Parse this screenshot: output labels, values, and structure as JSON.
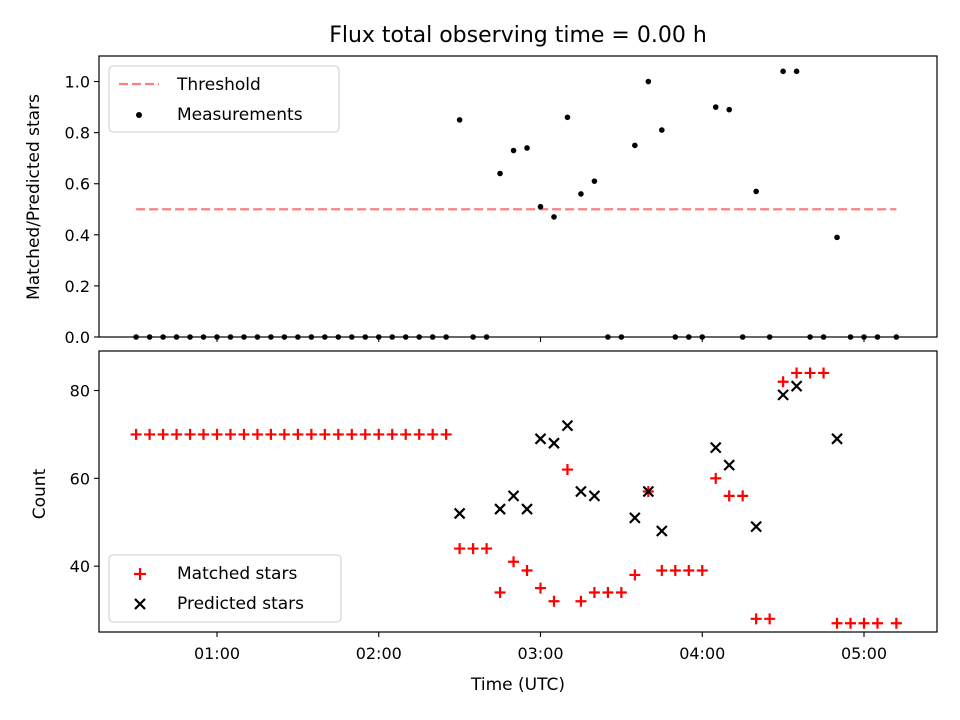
{
  "title": "Flux total observing time = 0.00 h",
  "colors": {
    "threshold": "#ff7f7f",
    "measurements": "#000000",
    "matched": "#ff0000",
    "predicted": "#000000"
  },
  "chart_data": [
    {
      "type": "scatter",
      "title": "Flux total observing time = 0.00 h",
      "xlabel": "",
      "ylabel": "Matched/Predicted stars",
      "ylim": [
        0,
        1.1
      ],
      "yticks": [
        "0.0",
        "0.2",
        "0.4",
        "0.6",
        "0.8",
        "1.0"
      ],
      "legend_position": "top-left",
      "series": [
        {
          "name": "Threshold",
          "style": "dashed-line",
          "color": "#ff7f7f",
          "x": [
            "00:30",
            "05:12"
          ],
          "y": [
            0.5,
            0.5
          ]
        },
        {
          "name": "Measurements",
          "style": "dot",
          "color": "#000000",
          "x": [
            "00:30",
            "00:35",
            "00:40",
            "00:45",
            "00:50",
            "00:55",
            "01:00",
            "01:05",
            "01:10",
            "01:15",
            "01:20",
            "01:25",
            "01:30",
            "01:35",
            "01:40",
            "01:45",
            "01:50",
            "01:55",
            "02:00",
            "02:05",
            "02:10",
            "02:15",
            "02:20",
            "02:25",
            "02:30",
            "02:35",
            "02:40",
            "02:45",
            "02:50",
            "02:55",
            "03:00",
            "03:05",
            "03:10",
            "03:15",
            "03:20",
            "03:25",
            "03:30",
            "03:35",
            "03:40",
            "03:45",
            "03:50",
            "03:55",
            "04:00",
            "04:05",
            "04:10",
            "04:15",
            "04:20",
            "04:25",
            "04:30",
            "04:35",
            "04:40",
            "04:45",
            "04:50",
            "04:55",
            "05:00",
            "05:05",
            "05:12"
          ],
          "y": [
            0,
            0,
            0,
            0,
            0,
            0,
            0,
            0,
            0,
            0,
            0,
            0,
            0,
            0,
            0,
            0,
            0,
            0,
            0,
            0,
            0,
            0,
            0,
            0,
            0.85,
            0,
            0,
            0.64,
            0.73,
            0.74,
            0.51,
            0.47,
            0.86,
            0.56,
            0.61,
            0,
            0,
            0.75,
            1.0,
            0.81,
            0,
            0,
            0,
            0.9,
            0.89,
            0,
            0.57,
            0,
            1.04,
            1.04,
            0,
            0,
            0.39,
            0,
            0,
            0,
            0
          ]
        }
      ]
    },
    {
      "type": "scatter",
      "xlabel": "Time (UTC)",
      "ylabel": "Count",
      "ylim": [
        25,
        89
      ],
      "yticks": [
        "40",
        "60",
        "80"
      ],
      "xticks": [
        "01:00",
        "02:00",
        "03:00",
        "04:00",
        "05:00"
      ],
      "legend_position": "bottom-left",
      "series": [
        {
          "name": "Matched stars",
          "marker": "+",
          "color": "#ff0000",
          "x": [
            "00:30",
            "00:35",
            "00:40",
            "00:45",
            "00:50",
            "00:55",
            "01:00",
            "01:05",
            "01:10",
            "01:15",
            "01:20",
            "01:25",
            "01:30",
            "01:35",
            "01:40",
            "01:45",
            "01:50",
            "01:55",
            "02:00",
            "02:05",
            "02:10",
            "02:15",
            "02:20",
            "02:25",
            "02:30",
            "02:35",
            "02:40",
            "02:45",
            "02:50",
            "02:55",
            "03:00",
            "03:05",
            "03:10",
            "03:15",
            "03:20",
            "03:25",
            "03:30",
            "03:35",
            "03:40",
            "03:45",
            "03:50",
            "03:55",
            "04:00",
            "04:05",
            "04:10",
            "04:15",
            "04:20",
            "04:25",
            "04:30",
            "04:35",
            "04:40",
            "04:45",
            "04:50",
            "04:55",
            "05:00",
            "05:05",
            "05:12"
          ],
          "y": [
            70,
            70,
            70,
            70,
            70,
            70,
            70,
            70,
            70,
            70,
            70,
            70,
            70,
            70,
            70,
            70,
            70,
            70,
            70,
            70,
            70,
            70,
            70,
            70,
            44,
            44,
            44,
            34,
            41,
            39,
            35,
            32,
            62,
            32,
            34,
            34,
            34,
            38,
            57,
            39,
            39,
            39,
            39,
            60,
            56,
            56,
            28,
            28,
            82,
            84,
            84,
            84,
            27,
            27,
            27,
            27,
            27
          ]
        },
        {
          "name": "Predicted stars",
          "marker": "x",
          "color": "#000000",
          "x": [
            "02:30",
            "02:45",
            "02:50",
            "02:55",
            "03:00",
            "03:05",
            "03:10",
            "03:15",
            "03:20",
            "03:35",
            "03:40",
            "03:45",
            "04:05",
            "04:10",
            "04:20",
            "04:30",
            "04:35",
            "04:50"
          ],
          "y": [
            52,
            53,
            56,
            53,
            69,
            68,
            72,
            57,
            56,
            51,
            57,
            48,
            67,
            63,
            49,
            79,
            81,
            69
          ]
        }
      ]
    }
  ]
}
